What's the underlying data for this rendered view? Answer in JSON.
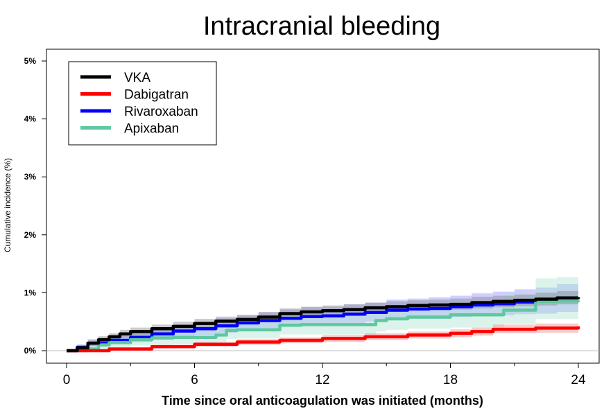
{
  "chart_data": {
    "type": "line",
    "title": "Intracranial bleeding",
    "xlabel": "Time since oral anticoagulation was initiated (months)",
    "ylabel": "Cumulative incidence (%)",
    "xlim": [
      0,
      24
    ],
    "ylim": [
      0,
      5
    ],
    "x_ticks": [
      {
        "value": 0,
        "label": "0"
      },
      {
        "value": 6,
        "label": "6"
      },
      {
        "value": 12,
        "label": "12"
      },
      {
        "value": 18,
        "label": "18"
      },
      {
        "value": 24,
        "label": "24"
      }
    ],
    "y_ticks": [
      {
        "value": 0,
        "label": "0%"
      },
      {
        "value": 1,
        "label": "1%"
      },
      {
        "value": 2,
        "label": "2%"
      },
      {
        "value": 3,
        "label": "3%"
      },
      {
        "value": 4,
        "label": "4%"
      },
      {
        "value": 5,
        "label": "5%"
      }
    ],
    "legend_position": "top-left",
    "grid": false,
    "series": [
      {
        "name": "VKA",
        "color": "#000000",
        "band_color": "#808080",
        "x": [
          0,
          0.5,
          1,
          1.5,
          2,
          2.5,
          3,
          4,
          5,
          6,
          7,
          8,
          9,
          10,
          11,
          12,
          13,
          14,
          15,
          16,
          17,
          18,
          19,
          20,
          21,
          22,
          23,
          24
        ],
        "y": [
          0,
          0.05,
          0.13,
          0.19,
          0.24,
          0.29,
          0.33,
          0.38,
          0.42,
          0.47,
          0.51,
          0.54,
          0.58,
          0.64,
          0.67,
          0.69,
          0.71,
          0.74,
          0.76,
          0.78,
          0.79,
          0.8,
          0.83,
          0.85,
          0.87,
          0.89,
          0.91,
          0.92
        ],
        "lower": [
          0,
          0.02,
          0.08,
          0.13,
          0.18,
          0.22,
          0.26,
          0.31,
          0.35,
          0.39,
          0.43,
          0.46,
          0.49,
          0.55,
          0.58,
          0.6,
          0.62,
          0.65,
          0.67,
          0.69,
          0.7,
          0.71,
          0.73,
          0.75,
          0.77,
          0.78,
          0.8,
          0.8
        ],
        "upper": [
          0,
          0.09,
          0.18,
          0.25,
          0.3,
          0.36,
          0.4,
          0.45,
          0.5,
          0.55,
          0.59,
          0.62,
          0.67,
          0.73,
          0.76,
          0.78,
          0.8,
          0.83,
          0.85,
          0.87,
          0.88,
          0.9,
          0.93,
          0.95,
          0.97,
          1.0,
          1.03,
          1.05
        ]
      },
      {
        "name": "Dabigatran",
        "color": "#ff0000",
        "band_color": "#f08080",
        "x": [
          0,
          2,
          4,
          6,
          8,
          10,
          12,
          14,
          16,
          18,
          19,
          20,
          22,
          24
        ],
        "y": [
          0,
          0.03,
          0.07,
          0.11,
          0.15,
          0.18,
          0.21,
          0.24,
          0.27,
          0.3,
          0.33,
          0.37,
          0.39,
          0.42
        ],
        "lower": [
          0,
          0.01,
          0.04,
          0.07,
          0.1,
          0.13,
          0.15,
          0.18,
          0.21,
          0.23,
          0.26,
          0.3,
          0.31,
          0.33
        ],
        "upper": [
          0,
          0.05,
          0.1,
          0.15,
          0.2,
          0.23,
          0.27,
          0.3,
          0.33,
          0.37,
          0.4,
          0.45,
          0.47,
          0.51
        ]
      },
      {
        "name": "Rivaroxaban",
        "color": "#0000ff",
        "band_color": "#8888ff",
        "x": [
          0,
          0.5,
          1,
          2,
          3,
          4,
          5,
          6,
          7,
          8,
          9,
          10,
          11,
          12,
          13,
          14,
          15,
          16,
          17,
          18,
          19,
          20,
          21,
          22,
          23,
          24
        ],
        "y": [
          0,
          0.06,
          0.13,
          0.18,
          0.23,
          0.29,
          0.34,
          0.38,
          0.43,
          0.48,
          0.52,
          0.56,
          0.59,
          0.6,
          0.63,
          0.66,
          0.7,
          0.72,
          0.73,
          0.76,
          0.79,
          0.81,
          0.84,
          0.86,
          0.91,
          0.92
        ],
        "lower": [
          0,
          0.02,
          0.07,
          0.11,
          0.15,
          0.2,
          0.24,
          0.27,
          0.31,
          0.35,
          0.38,
          0.42,
          0.44,
          0.45,
          0.47,
          0.5,
          0.53,
          0.55,
          0.55,
          0.58,
          0.6,
          0.61,
          0.63,
          0.64,
          0.67,
          0.67
        ],
        "upper": [
          0,
          0.11,
          0.2,
          0.26,
          0.32,
          0.39,
          0.45,
          0.5,
          0.56,
          0.61,
          0.66,
          0.71,
          0.75,
          0.76,
          0.8,
          0.83,
          0.88,
          0.9,
          0.92,
          0.95,
          0.99,
          1.02,
          1.06,
          1.09,
          1.15,
          1.17
        ]
      },
      {
        "name": "Apixaban",
        "color": "#5ec8a0",
        "band_color": "#a8e0cc",
        "x": [
          0,
          1,
          1.5,
          2,
          3,
          4,
          5,
          6,
          7,
          7.5,
          8,
          9,
          10,
          11,
          12,
          13,
          14,
          14.5,
          15,
          16,
          17,
          18,
          19,
          20,
          20.5,
          21,
          22,
          23,
          24
        ],
        "y": [
          0,
          0.03,
          0.1,
          0.14,
          0.19,
          0.22,
          0.23,
          0.23,
          0.27,
          0.35,
          0.36,
          0.36,
          0.44,
          0.45,
          0.45,
          0.45,
          0.45,
          0.52,
          0.55,
          0.58,
          0.58,
          0.62,
          0.62,
          0.62,
          0.7,
          0.7,
          0.85,
          0.86,
          0.87
        ],
        "lower": [
          0,
          0.0,
          0.04,
          0.06,
          0.09,
          0.11,
          0.12,
          0.12,
          0.15,
          0.2,
          0.21,
          0.21,
          0.28,
          0.28,
          0.28,
          0.28,
          0.28,
          0.33,
          0.36,
          0.38,
          0.38,
          0.4,
          0.4,
          0.4,
          0.46,
          0.46,
          0.55,
          0.55,
          0.55
        ],
        "upper": [
          0,
          0.08,
          0.17,
          0.23,
          0.3,
          0.34,
          0.36,
          0.36,
          0.41,
          0.51,
          0.52,
          0.52,
          0.62,
          0.63,
          0.63,
          0.63,
          0.63,
          0.72,
          0.76,
          0.8,
          0.8,
          0.86,
          0.86,
          0.86,
          0.97,
          0.97,
          1.25,
          1.27,
          1.3
        ]
      }
    ]
  }
}
